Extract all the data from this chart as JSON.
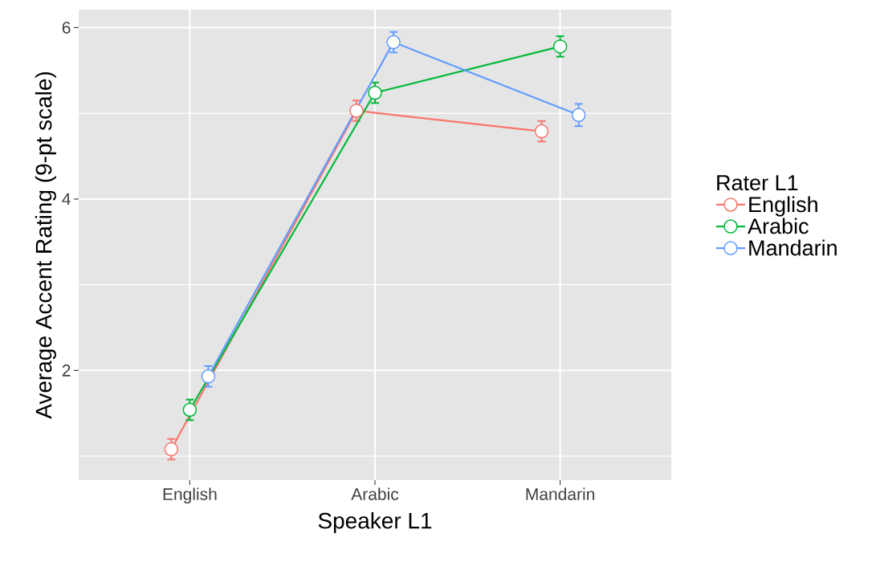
{
  "chart_data": {
    "type": "line",
    "xlabel": "Speaker L1",
    "ylabel": "Average Accent Rating (9-pt scale)",
    "legend_title": "Rater L1",
    "categories": [
      "English",
      "Arabic",
      "Mandarin"
    ],
    "series": [
      {
        "name": "English",
        "color": "#f8766d",
        "values": [
          1.08,
          5.03,
          4.79
        ],
        "errors": [
          0.12,
          0.12,
          0.12
        ]
      },
      {
        "name": "Arabic",
        "color": "#00ba38",
        "values": [
          1.54,
          5.24,
          5.78
        ],
        "errors": [
          0.12,
          0.12,
          0.12
        ]
      },
      {
        "name": "Mandarin",
        "color": "#619cff",
        "values": [
          1.93,
          5.83,
          4.98
        ],
        "errors": [
          0.12,
          0.12,
          0.13
        ]
      }
    ],
    "ylim": [
      0.72,
      6.21
    ],
    "yticks": [
      2,
      4,
      6
    ],
    "grid": true,
    "legend": "right",
    "marker": "circle",
    "line_style": "solid"
  }
}
